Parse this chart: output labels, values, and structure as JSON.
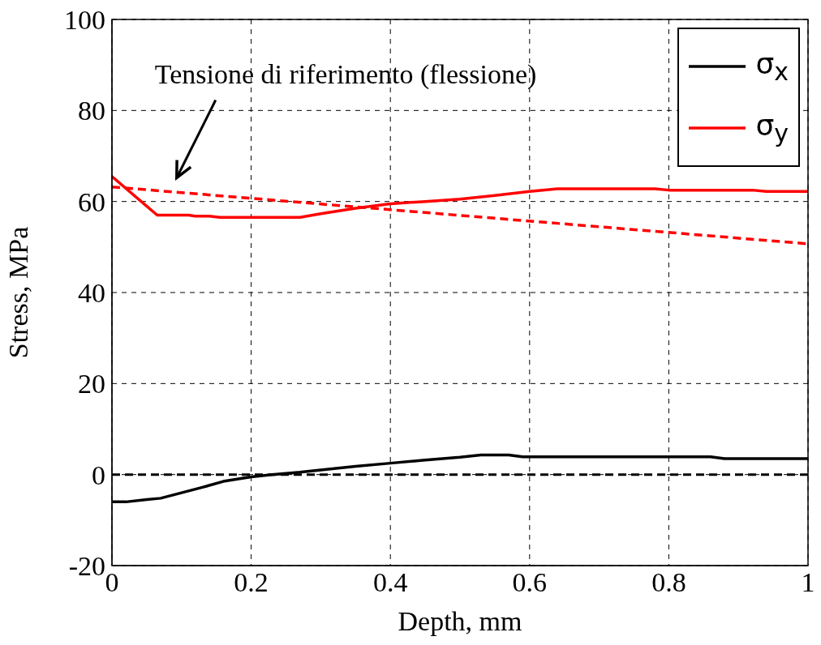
{
  "chart_data": {
    "type": "line",
    "xlabel": "Depth, mm",
    "ylabel": "Stress,  MPa",
    "xlim": [
      0,
      1
    ],
    "xticks": [
      0,
      0.2,
      0.4,
      0.6,
      0.8,
      1
    ],
    "ylim": [
      -20,
      100
    ],
    "yticks": [
      -20,
      0,
      20,
      40,
      60,
      80,
      100
    ],
    "grid": true,
    "legend": "top right",
    "line_style": "solid",
    "marker": "none",
    "series": [
      {
        "name": "σ$_{x}$",
        "color": "#000000",
        "x": [
          0,
          0.02,
          0.05,
          0.07,
          0.1,
          0.13,
          0.16,
          0.2,
          0.23,
          0.27,
          0.3,
          0.35,
          0.4,
          0.45,
          0.5,
          0.53,
          0.57,
          0.59,
          0.86,
          0.88,
          1
        ],
        "values": [
          -6,
          -6,
          -5.5,
          -5.2,
          -4,
          -2.8,
          -1.5,
          -0.5,
          0,
          0.5,
          1,
          1.8,
          2.5,
          3.2,
          3.8,
          4.3,
          4.3,
          3.9,
          3.9,
          3.5,
          3.5
        ]
      },
      {
        "name": "σ$_{y}$",
        "color": "#ff0000",
        "x": [
          0,
          0.065,
          0.11,
          0.12,
          0.14,
          0.155,
          0.27,
          0.3,
          0.35,
          0.4,
          0.45,
          0.5,
          0.55,
          0.6,
          0.64,
          0.78,
          0.8,
          0.92,
          0.94,
          1
        ],
        "values": [
          65.5,
          57,
          57,
          56.8,
          56.8,
          56.5,
          56.5,
          57.3,
          58.5,
          59.5,
          60,
          60.5,
          61.3,
          62.2,
          62.8,
          62.8,
          62.5,
          62.5,
          62.2,
          62.2
        ]
      },
      {
        "color": "#ff0000",
        "line_style": "dashed",
        "x": [
          0,
          1
        ],
        "values": [
          63.2,
          50.7
        ]
      }
    ],
    "ref_lines": [
      {
        "axis": "y",
        "value": 0,
        "color": "#000000",
        "line_style": "dashed"
      }
    ],
    "annotations": [
      "Tensione di riferimento (flessione)"
    ]
  }
}
